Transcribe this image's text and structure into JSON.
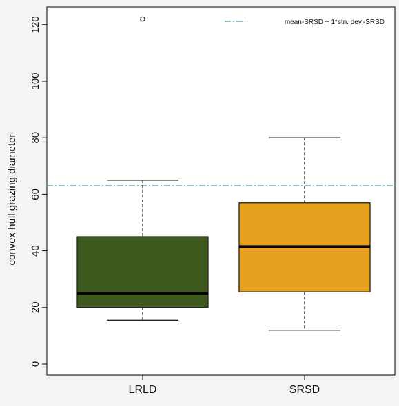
{
  "chart_data": {
    "type": "box",
    "ylabel": "convex hull grazing diameter",
    "categories": [
      "LRLD",
      "SRSD"
    ],
    "ylim": [
      0,
      125
    ],
    "yticks": [
      0,
      20,
      40,
      60,
      80,
      100,
      120
    ],
    "grid": false,
    "legend_position": "top-right",
    "boxes": [
      {
        "category": "LRLD",
        "whisker_low": 15.5,
        "q1": 20,
        "median": 25,
        "q3": 45,
        "whisker_high": 65,
        "outliers": [
          122
        ],
        "fill": "#3f5a1e"
      },
      {
        "category": "SRSD",
        "whisker_low": 12,
        "q1": 25.5,
        "median": 41.5,
        "q3": 57,
        "whisker_high": 80,
        "outliers": [],
        "fill": "#e8a11e"
      }
    ],
    "reference_line": {
      "value": 63,
      "label": "mean-SRSD + 1*stn. dev.-SRSD",
      "color": "#7aa9ba"
    }
  }
}
